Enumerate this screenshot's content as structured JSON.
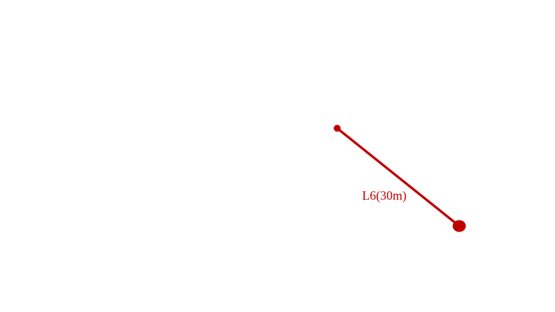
{
  "diagram": {
    "segment": {
      "label": "L6(30m)",
      "color": "#c00000"
    }
  }
}
